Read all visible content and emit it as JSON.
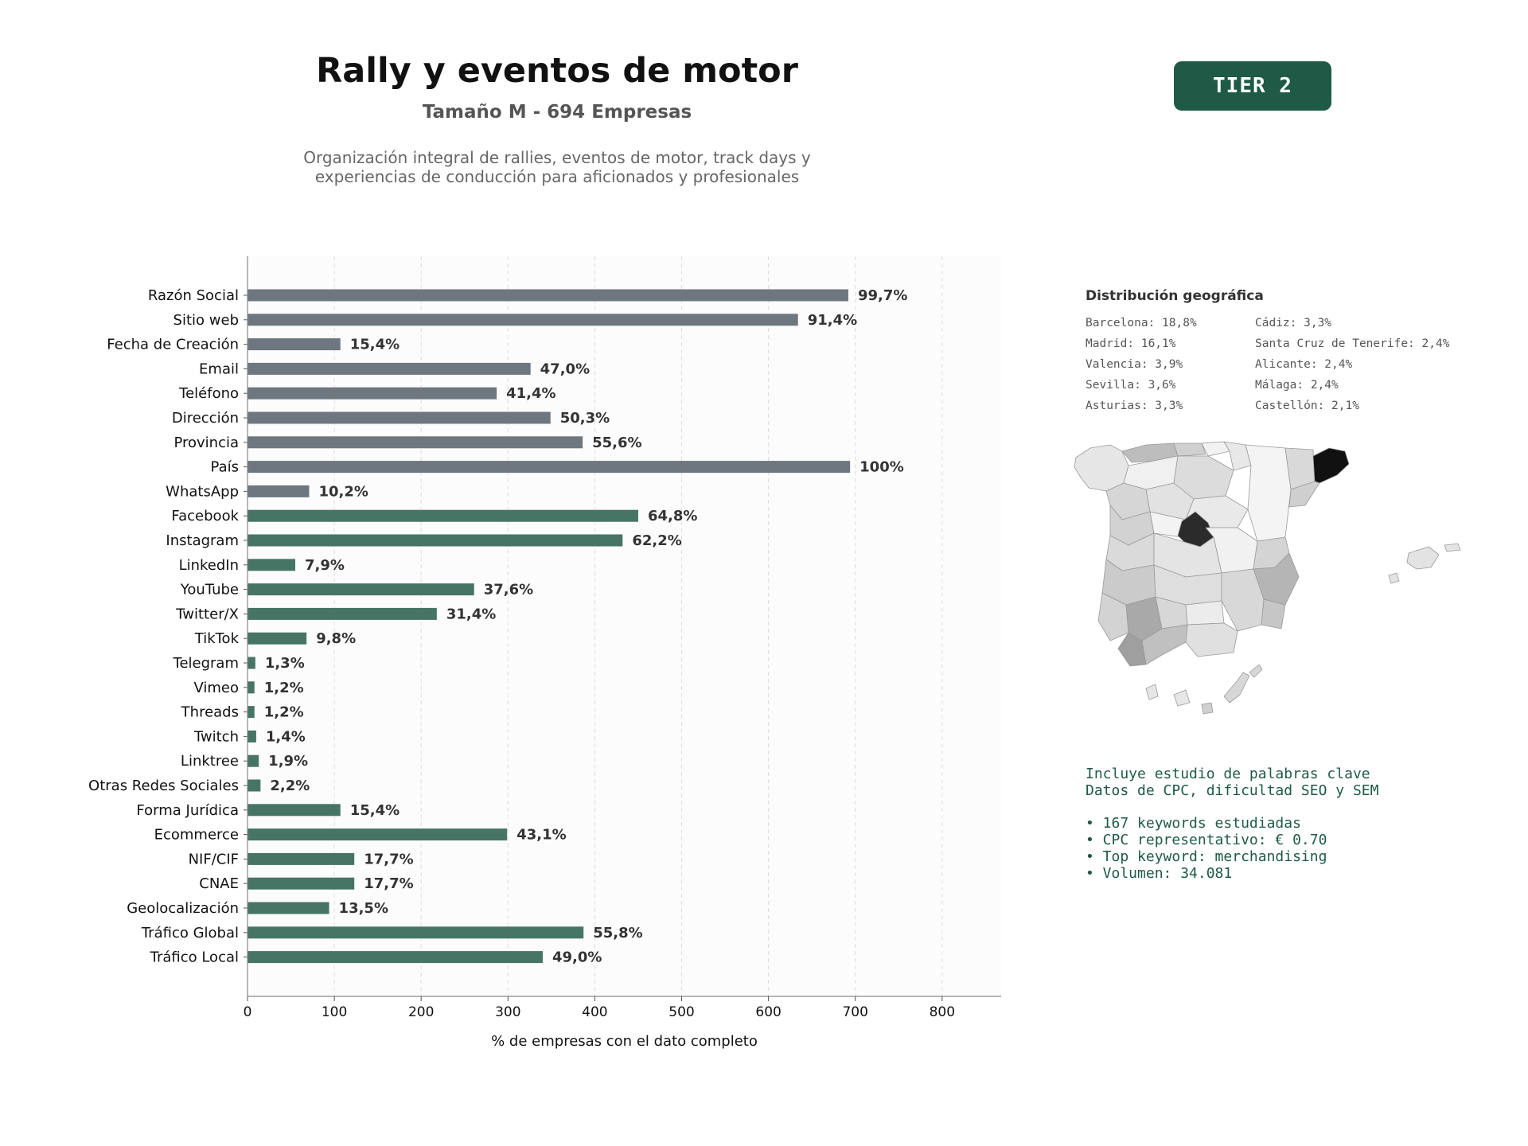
{
  "header": {
    "title": "Rally y eventos de motor",
    "subtitle": "Tamaño M - 694 Empresas",
    "description_line1": "Organización integral de rallies, eventos de motor, track days y",
    "description_line2": "experiencias de conducción para aficionados y profesionales"
  },
  "tier_badge": "TIER 2",
  "colors": {
    "gray_bar": "#6e7780",
    "green_bar": "#477565",
    "brand_green": "#1e5a46"
  },
  "chart_data": {
    "type": "bar",
    "orientation": "horizontal",
    "xlabel": "% de empresas con el dato completo",
    "xlim": [
      0,
      868
    ],
    "xticks": [
      0,
      100,
      200,
      300,
      400,
      500,
      600,
      700,
      800
    ],
    "grid": "vertical dashed",
    "categories": [
      "Razón Social",
      "Sitio web",
      "Fecha de Creación",
      "Email",
      "Teléfono",
      "Dirección",
      "Provincia",
      "País",
      "WhatsApp",
      "Facebook",
      "Instagram",
      "LinkedIn",
      "YouTube",
      "Twitter/X",
      "TikTok",
      "Telegram",
      "Vimeo",
      "Threads",
      "Twitch",
      "Linktree",
      "Otras Redes Sociales",
      "Forma Jurídica",
      "Ecommerce",
      "NIF/CIF",
      "CNAE",
      "Geolocalización",
      "Tráfico Global",
      "Tráfico Local"
    ],
    "values": [
      692,
      634,
      107,
      326,
      287,
      349,
      386,
      694,
      71,
      450,
      432,
      55,
      261,
      218,
      68,
      9,
      8,
      8,
      10,
      13,
      15,
      107,
      299,
      123,
      123,
      94,
      387,
      340
    ],
    "labels": [
      "99,7%",
      "91,4%",
      "15,4%",
      "47,0%",
      "41,4%",
      "50,3%",
      "55,6%",
      "100%",
      "10,2%",
      "64,8%",
      "62,2%",
      "7,9%",
      "37,6%",
      "31,4%",
      "9,8%",
      "1,3%",
      "1,2%",
      "1,2%",
      "1,4%",
      "1,9%",
      "2,2%",
      "15,4%",
      "43,1%",
      "17,7%",
      "17,7%",
      "13,5%",
      "55,8%",
      "49,0%"
    ],
    "bar_color_group": [
      "gray",
      "gray",
      "gray",
      "gray",
      "gray",
      "gray",
      "gray",
      "gray",
      "gray",
      "green",
      "green",
      "green",
      "green",
      "green",
      "green",
      "green",
      "green",
      "green",
      "green",
      "green",
      "green",
      "green",
      "green",
      "green",
      "green",
      "green",
      "green",
      "green"
    ]
  },
  "geo": {
    "title": "Distribución geográfica",
    "left_column": [
      "Barcelona: 18,8%",
      "Madrid: 16,1%",
      "Valencia: 3,9%",
      "Sevilla: 3,6%",
      "Asturias: 3,3%"
    ],
    "right_column": [
      "Cádiz: 3,3%",
      "Santa Cruz de Tenerife: 2,4%",
      "Alicante: 2,4%",
      "Málaga: 2,4%",
      "Castellón: 2,1%"
    ]
  },
  "keywords": {
    "line1": "Incluye estudio de palabras clave",
    "line2": "Datos de CPC, dificultad SEO y SEM",
    "bullets": [
      "• 167 keywords estudiadas",
      "• CPC representativo: € 0.70",
      "• Top keyword: merchandising",
      "• Volumen: 34.081"
    ]
  }
}
